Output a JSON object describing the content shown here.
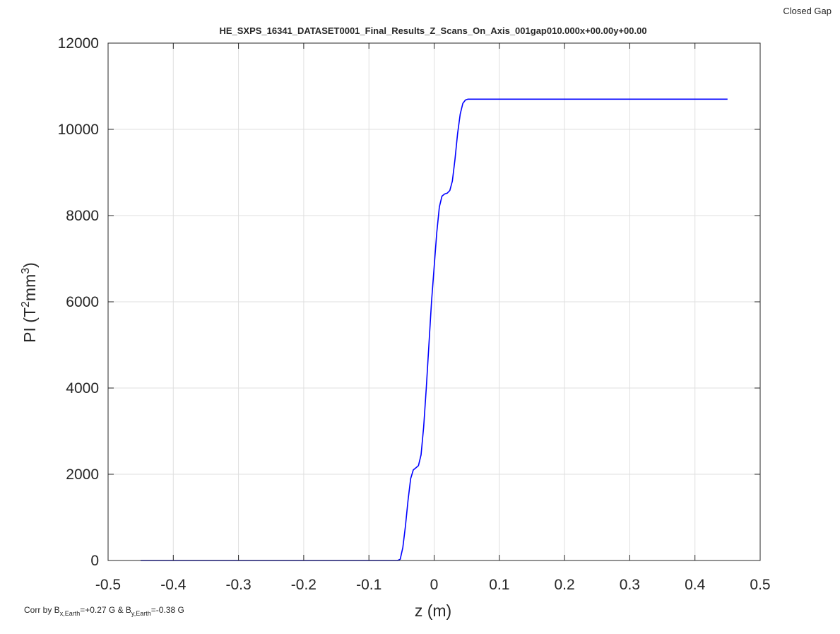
{
  "corner_label": "Closed Gap",
  "footnote": {
    "prefix": "Corr by B",
    "bx_sub": "x,Earth",
    "bx_value": "=+0.27 G & B",
    "by_sub": "y,Earth",
    "by_value": "=-0.38 G"
  },
  "chart_data": {
    "type": "line",
    "title": "HE_SXPS_16341_DATASET0001_Final_Results_Z_Scans_On_Axis_001gap010.000x+00.00y+00.00",
    "xlabel": "z (m)",
    "ylabel": {
      "base": "PI (T",
      "sup1": "2",
      "mid": "mm",
      "sup2": "3",
      "end": ")"
    },
    "xlim": [
      -0.5,
      0.5
    ],
    "ylim": [
      0,
      12000
    ],
    "xticks": [
      -0.5,
      -0.4,
      -0.3,
      -0.2,
      -0.1,
      0,
      0.1,
      0.2,
      0.3,
      0.4,
      0.5
    ],
    "xtick_labels": [
      "-0.5",
      "-0.4",
      "-0.3",
      "-0.2",
      "-0.1",
      "0",
      "0.1",
      "0.2",
      "0.3",
      "0.4",
      "0.5"
    ],
    "yticks": [
      0,
      2000,
      4000,
      6000,
      8000,
      10000,
      12000
    ],
    "ytick_labels": [
      "0",
      "2000",
      "4000",
      "6000",
      "8000",
      "10000",
      "12000"
    ],
    "grid": true,
    "series": [
      {
        "color": "#0000ff",
        "x": [
          -0.45,
          -0.3,
          -0.1,
          -0.056,
          -0.052,
          -0.048,
          -0.044,
          -0.04,
          -0.036,
          -0.032,
          -0.028,
          -0.024,
          -0.02,
          -0.016,
          -0.012,
          -0.008,
          -0.004,
          0,
          0.004,
          0.008,
          0.012,
          0.016,
          0.02,
          0.024,
          0.028,
          0.032,
          0.036,
          0.04,
          0.044,
          0.048,
          0.052,
          0.056,
          0.06,
          0.1,
          0.2,
          0.3,
          0.45
        ],
        "y": [
          0,
          0,
          0,
          0,
          30,
          300,
          800,
          1400,
          1900,
          2100,
          2150,
          2200,
          2450,
          3100,
          4000,
          5000,
          6000,
          6800,
          7600,
          8200,
          8450,
          8500,
          8520,
          8580,
          8800,
          9300,
          9900,
          10350,
          10600,
          10680,
          10700,
          10700,
          10700,
          10700,
          10700,
          10700,
          10700
        ]
      }
    ]
  }
}
